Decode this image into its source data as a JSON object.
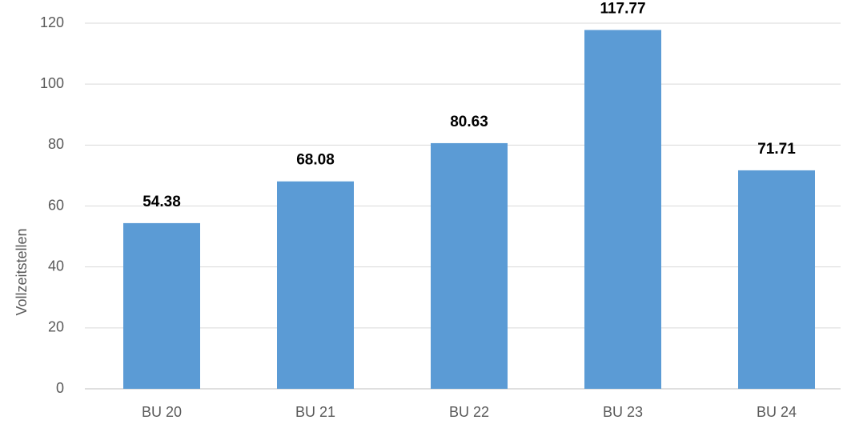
{
  "chart_data": {
    "type": "bar",
    "y_label": "Vollzeitstellen",
    "categories": [
      "BU 20",
      "BU 21",
      "BU 22",
      "BU 23",
      "BU 24"
    ],
    "values": [
      54.38,
      68.08,
      80.63,
      117.77,
      71.71
    ],
    "color": "#5b9bd5",
    "ylim": [
      0,
      120
    ],
    "yticks": [
      0,
      20,
      40,
      60,
      80,
      100,
      120
    ],
    "grid": true
  }
}
